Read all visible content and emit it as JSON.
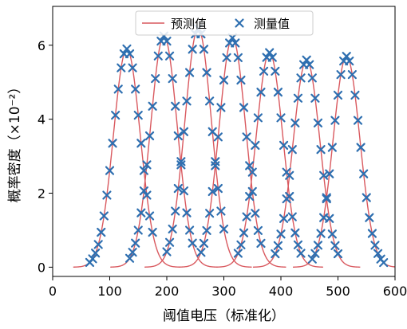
{
  "chart_data": {
    "type": "line",
    "xlabel": "阈值电压（标准化）",
    "ylabel": "概率密度（×10⁻²）",
    "xlim": [
      0,
      600
    ],
    "ylim": [
      -0.25,
      7.05
    ],
    "xticks": [
      0,
      100,
      200,
      300,
      400,
      500,
      600
    ],
    "yticks": [
      0,
      2,
      4,
      6
    ],
    "grid": false,
    "legend_placement": "top-center",
    "series": [
      {
        "name": "预测值",
        "kind": "line",
        "color": "#d9595f",
        "peaks": [
          {
            "center": 130,
            "height": 5.9,
            "sigma": 23.5
          },
          {
            "center": 195,
            "height": 6.25,
            "sigma": 23.5
          },
          {
            "center": 255,
            "height": 6.45,
            "sigma": 23.5
          },
          {
            "center": 315,
            "height": 6.2,
            "sigma": 23.5
          },
          {
            "center": 380,
            "height": 5.8,
            "sigma": 23.5
          },
          {
            "center": 445,
            "height": 5.6,
            "sigma": 23.5
          },
          {
            "center": 515,
            "height": 5.7,
            "sigma": 23.5
          }
        ]
      },
      {
        "name": "测量值",
        "kind": "marker",
        "marker": "x",
        "color": "#2e6fb0",
        "peaks": [
          {
            "center": 130,
            "height": 5.9,
            "sigma": 23.5,
            "x_start": 65,
            "x_end": 175
          },
          {
            "center": 195,
            "height": 6.25,
            "sigma": 23.5,
            "x_start": 135,
            "x_end": 245
          },
          {
            "center": 255,
            "height": 6.45,
            "sigma": 23.5,
            "x_start": 200,
            "x_end": 300
          },
          {
            "center": 315,
            "height": 6.2,
            "sigma": 23.5,
            "x_start": 260,
            "x_end": 365
          },
          {
            "center": 380,
            "height": 5.8,
            "sigma": 23.5,
            "x_start": 325,
            "x_end": 435
          },
          {
            "center": 445,
            "height": 5.6,
            "sigma": 23.5,
            "x_start": 390,
            "x_end": 500
          },
          {
            "center": 515,
            "height": 5.7,
            "sigma": 23.5,
            "x_start": 455,
            "x_end": 580
          }
        ],
        "x_step": 5
      }
    ]
  }
}
